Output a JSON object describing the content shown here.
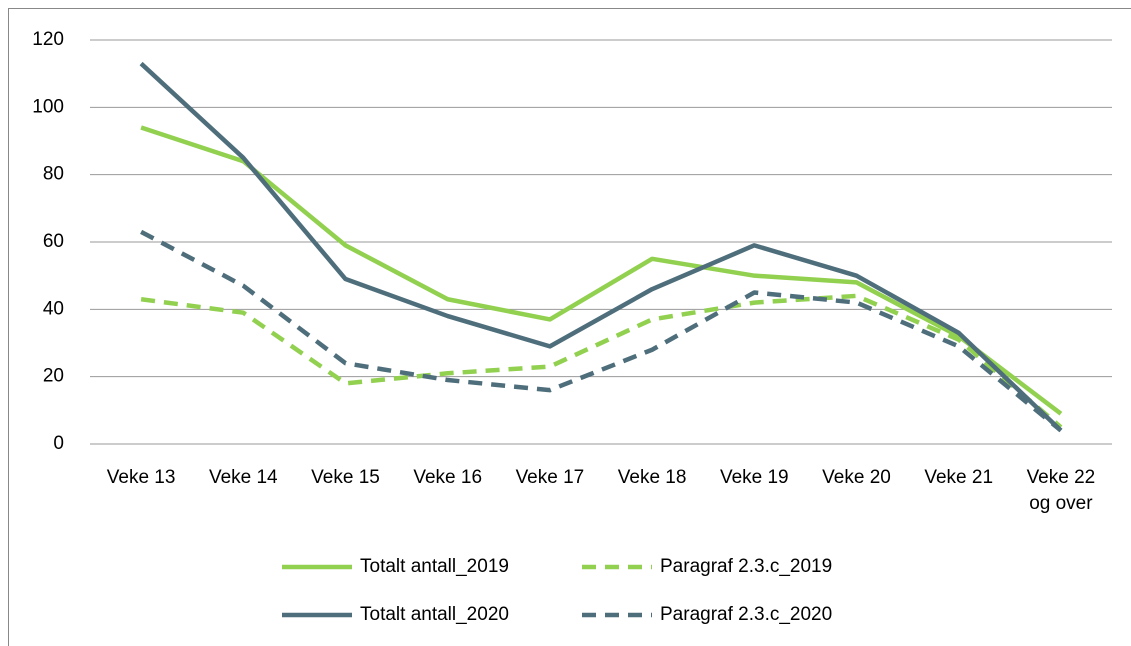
{
  "chart_data": {
    "type": "line",
    "categories": [
      "Veke 13",
      "Veke 14",
      "Veke 15",
      "Veke 16",
      "Veke 17",
      "Veke 18",
      "Veke 19",
      "Veke 20",
      "Veke 21",
      "Veke 22 og over"
    ],
    "series": [
      {
        "name": "Totalt antall_2019",
        "color": "#92d050",
        "line_style": "solid",
        "values": [
          94,
          84,
          59,
          43,
          37,
          55,
          50,
          48,
          32,
          9
        ]
      },
      {
        "name": "Paragraf 2.3.c_2019",
        "color": "#92d050",
        "line_style": "dashed",
        "values": [
          43,
          39,
          18,
          21,
          23,
          37,
          42,
          44,
          31,
          5
        ]
      },
      {
        "name": "Totalt antall_2020",
        "color": "#4e6e7c",
        "line_style": "solid",
        "values": [
          113,
          85,
          49,
          38,
          29,
          46,
          59,
          50,
          33,
          4
        ]
      },
      {
        "name": "Paragraf 2.3.c_2020",
        "color": "#4e6e7c",
        "line_style": "dashed",
        "values": [
          63,
          47,
          24,
          19,
          16,
          28,
          45,
          42,
          29,
          4
        ]
      }
    ],
    "ylim": [
      0,
      120
    ],
    "yticks": [
      0,
      20,
      40,
      60,
      80,
      100,
      120
    ],
    "grid": true,
    "legend": "bottom"
  }
}
